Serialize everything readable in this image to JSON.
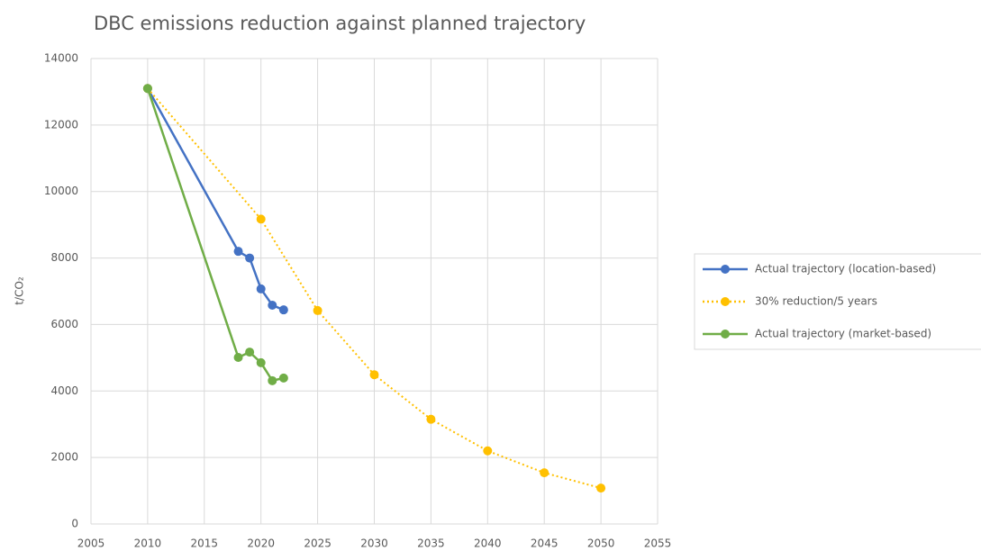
{
  "chart_data": {
    "type": "scatter",
    "title": "DBC emissions reduction against planned trajectory",
    "y_label": "t/CO₂",
    "xlim": [
      2005,
      2055
    ],
    "xticks": [
      2005,
      2010,
      2015,
      2020,
      2025,
      2030,
      2035,
      2040,
      2045,
      2050,
      2055
    ],
    "ylim": [
      0,
      14000
    ],
    "yticks": [
      0,
      2000,
      4000,
      6000,
      8000,
      10000,
      12000,
      14000
    ],
    "grid": true,
    "legend": "right",
    "series": [
      {
        "name": "Actual trajectory (location-based)",
        "color": "#4472c4",
        "line": "solid",
        "x": [
          2010,
          2018,
          2019,
          2020,
          2021,
          2022
        ],
        "values": [
          13100,
          8200,
          8000,
          7070,
          6580,
          6440
        ]
      },
      {
        "name": "30% reduction/5 years",
        "color": "#ffc000",
        "line": "dotted",
        "x": [
          2010,
          2020,
          2025,
          2030,
          2035,
          2040,
          2045,
          2050
        ],
        "values": [
          13100,
          9170,
          6420,
          4490,
          3150,
          2200,
          1540,
          1080
        ]
      },
      {
        "name": "Actual trajectory (market-based)",
        "color": "#70ad47",
        "line": "solid",
        "x": [
          2010,
          2018,
          2019,
          2020,
          2021,
          2022
        ],
        "values": [
          13100,
          5010,
          5170,
          4850,
          4310,
          4390
        ]
      }
    ]
  }
}
